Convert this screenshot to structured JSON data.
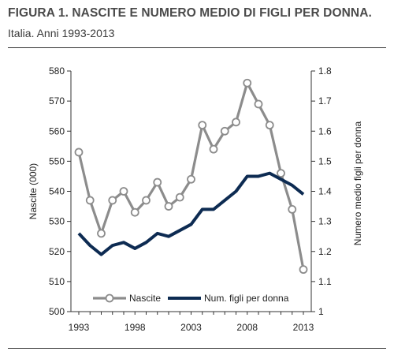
{
  "header": {
    "title": "FIGURA 1. NASCITE E NUMERO MEDIO DI FIGLI PER DONNA.",
    "subtitle": "Italia. Anni 1993-2013"
  },
  "chart_data": {
    "type": "line",
    "title": "FIGURA 1. NASCITE E NUMERO MEDIO DI FIGLI PER DONNA.",
    "subtitle": "Italia. Anni 1993-2013",
    "x": [
      1993,
      1994,
      1995,
      1996,
      1997,
      1998,
      1999,
      2000,
      2001,
      2002,
      2003,
      2004,
      2005,
      2006,
      2007,
      2008,
      2009,
      2010,
      2011,
      2012,
      2013
    ],
    "x_ticks": [
      "1993",
      "1998",
      "2003",
      "2008",
      "2013"
    ],
    "y_left": {
      "label": "Nascite (000)",
      "range": [
        500,
        580
      ],
      "ticks": [
        "500",
        "510",
        "520",
        "530",
        "540",
        "550",
        "560",
        "570",
        "580"
      ]
    },
    "y_right": {
      "label": "Numero medio figli per donna",
      "range": [
        1.0,
        1.8
      ],
      "ticks": [
        "1",
        "1.1",
        "1.2",
        "1.3",
        "1.4",
        "1.5",
        "1.6",
        "1.7",
        "1.8"
      ]
    },
    "series": [
      {
        "name": "Nascite",
        "axis": "left",
        "color": "#8c8c8c",
        "marker": "open-circle",
        "values": [
          553,
          537,
          526,
          537,
          540,
          533,
          537,
          543,
          535,
          538,
          544,
          562,
          554,
          560,
          563,
          576,
          569,
          562,
          546,
          534,
          514
        ]
      },
      {
        "name": "Num. figli per donna",
        "axis": "right",
        "color": "#0d2b52",
        "marker": "none",
        "values": [
          1.26,
          1.22,
          1.19,
          1.22,
          1.23,
          1.21,
          1.23,
          1.26,
          1.25,
          1.27,
          1.29,
          1.34,
          1.34,
          1.37,
          1.4,
          1.45,
          1.45,
          1.46,
          1.44,
          1.42,
          1.39
        ]
      }
    ],
    "legend_position": "bottom-left",
    "grid": false
  }
}
